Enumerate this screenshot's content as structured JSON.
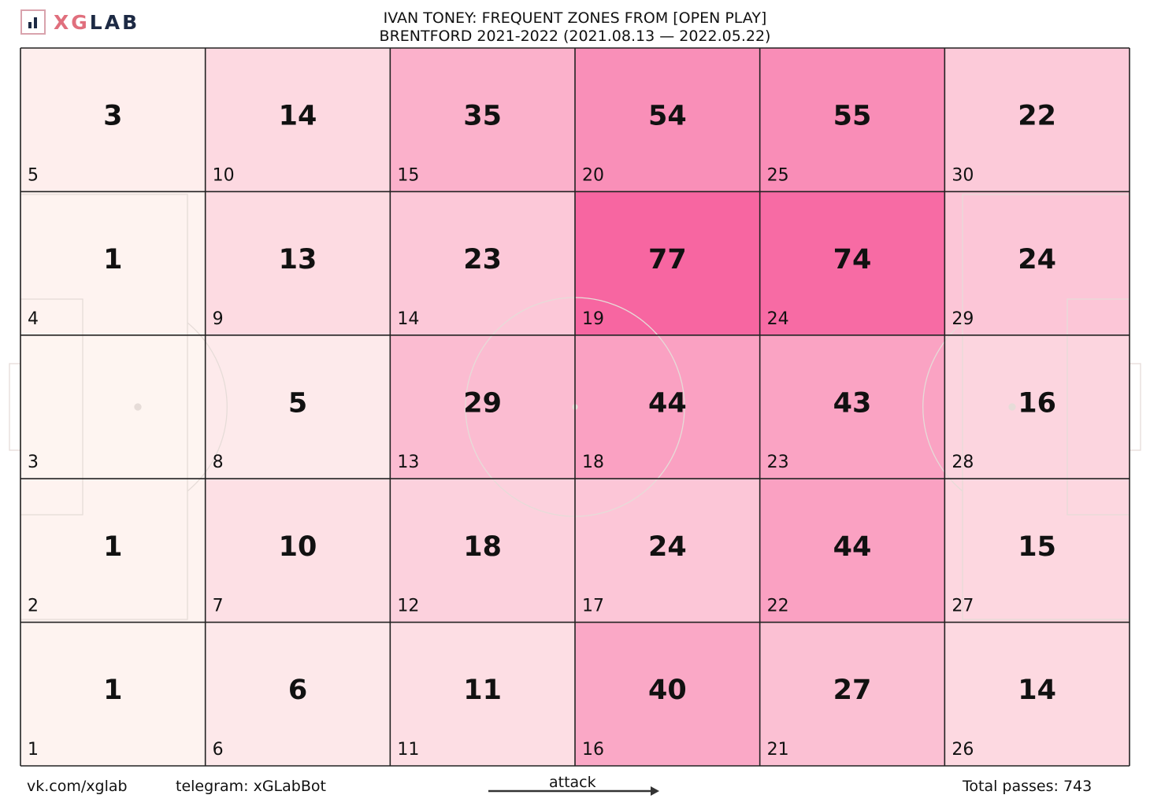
{
  "branding": {
    "logo_text_a": "XG",
    "logo_text_b": "LAB",
    "logo_icon": "bar-chart-icon",
    "accent_color": "#e06f7d"
  },
  "header": {
    "title_line1": "IVAN TONEY: FREQUENT ZONES FROM [OPEN PLAY]",
    "title_line2": "BRENTFORD 2021-2022 (2021.08.13 — 2022.05.22)"
  },
  "footer": {
    "vk": "vk.com/xglab",
    "telegram": "telegram: xGLabBot",
    "attack": "attack",
    "total": "Total passes: 743"
  },
  "chart_data": {
    "type": "heatmap",
    "title": "IVAN TONEY: FREQUENT ZONES FROM [OPEN PLAY]",
    "columns": 6,
    "rows": 5,
    "color_low": "#fef5f1",
    "color_high": "#f766a1",
    "cells": [
      {
        "zone": 5,
        "value": 3
      },
      {
        "zone": 10,
        "value": 14
      },
      {
        "zone": 15,
        "value": 35
      },
      {
        "zone": 20,
        "value": 54
      },
      {
        "zone": 25,
        "value": 55
      },
      {
        "zone": 30,
        "value": 22
      },
      {
        "zone": 4,
        "value": 1
      },
      {
        "zone": 9,
        "value": 13
      },
      {
        "zone": 14,
        "value": 23
      },
      {
        "zone": 19,
        "value": 77
      },
      {
        "zone": 24,
        "value": 74
      },
      {
        "zone": 29,
        "value": 24
      },
      {
        "zone": 3,
        "value": null
      },
      {
        "zone": 8,
        "value": 5
      },
      {
        "zone": 13,
        "value": 29
      },
      {
        "zone": 18,
        "value": 44
      },
      {
        "zone": 23,
        "value": 43
      },
      {
        "zone": 28,
        "value": 16
      },
      {
        "zone": 2,
        "value": 1
      },
      {
        "zone": 7,
        "value": 10
      },
      {
        "zone": 12,
        "value": 18
      },
      {
        "zone": 17,
        "value": 24
      },
      {
        "zone": 22,
        "value": 44
      },
      {
        "zone": 27,
        "value": 15
      },
      {
        "zone": 1,
        "value": 1
      },
      {
        "zone": 6,
        "value": 6
      },
      {
        "zone": 11,
        "value": 11
      },
      {
        "zone": 16,
        "value": 40
      },
      {
        "zone": 21,
        "value": 27
      },
      {
        "zone": 26,
        "value": 14
      }
    ]
  }
}
